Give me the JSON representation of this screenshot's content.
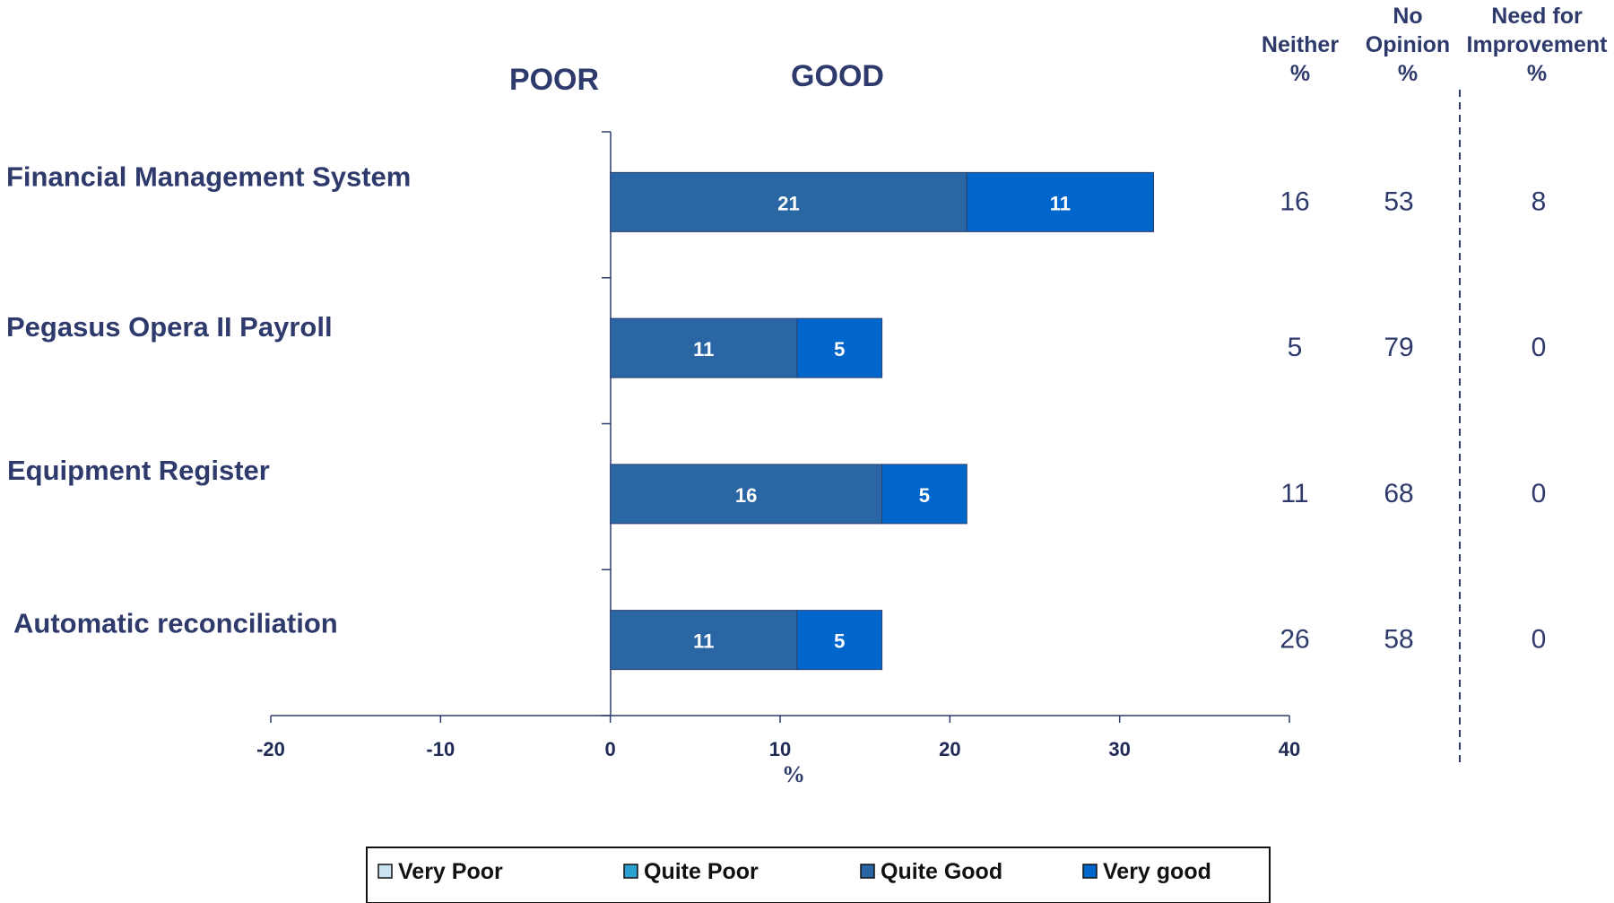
{
  "header": {
    "poor_label": "POOR",
    "good_label": "GOOD",
    "col_neither": [
      "Neither",
      "%"
    ],
    "col_noopinion": [
      "No",
      "Opinion",
      "%"
    ],
    "col_need": [
      "Need for",
      "Improvement",
      "%"
    ]
  },
  "chart_data": {
    "type": "bar",
    "orientation": "horizontal-stacked",
    "categories": [
      "Financial Management System",
      "Pegasus Opera II Payroll",
      "Equipment Register",
      "Automatic reconciliation"
    ],
    "series": [
      {
        "name": "Very Poor",
        "values": [
          0,
          0,
          0,
          0
        ],
        "color": "#c9e3f0"
      },
      {
        "name": "Quite Poor",
        "values": [
          0,
          0,
          0,
          0
        ],
        "color": "#2aa0d0"
      },
      {
        "name": "Quite Good",
        "values": [
          21,
          11,
          16,
          11
        ],
        "color": "#2966a3"
      },
      {
        "name": "Very good",
        "values": [
          11,
          5,
          5,
          5
        ],
        "color": "#0066cc"
      }
    ],
    "xlim": [
      -20,
      40
    ],
    "xticks": [
      "-20",
      "-10",
      "0",
      "10",
      "20",
      "30",
      "40"
    ],
    "xlabel": "%",
    "legend_position": "bottom"
  },
  "side_columns": {
    "neither": [
      "16",
      "5",
      "11",
      "26"
    ],
    "no_opinion": [
      "53",
      "79",
      "68",
      "58"
    ],
    "need_improvement": [
      "8",
      "0",
      "0",
      "0"
    ]
  },
  "colors": {
    "text": "#2e3a6b",
    "quite_good": "#2966a3",
    "very_good": "#0066cc",
    "axis": "#2e3a6b"
  }
}
